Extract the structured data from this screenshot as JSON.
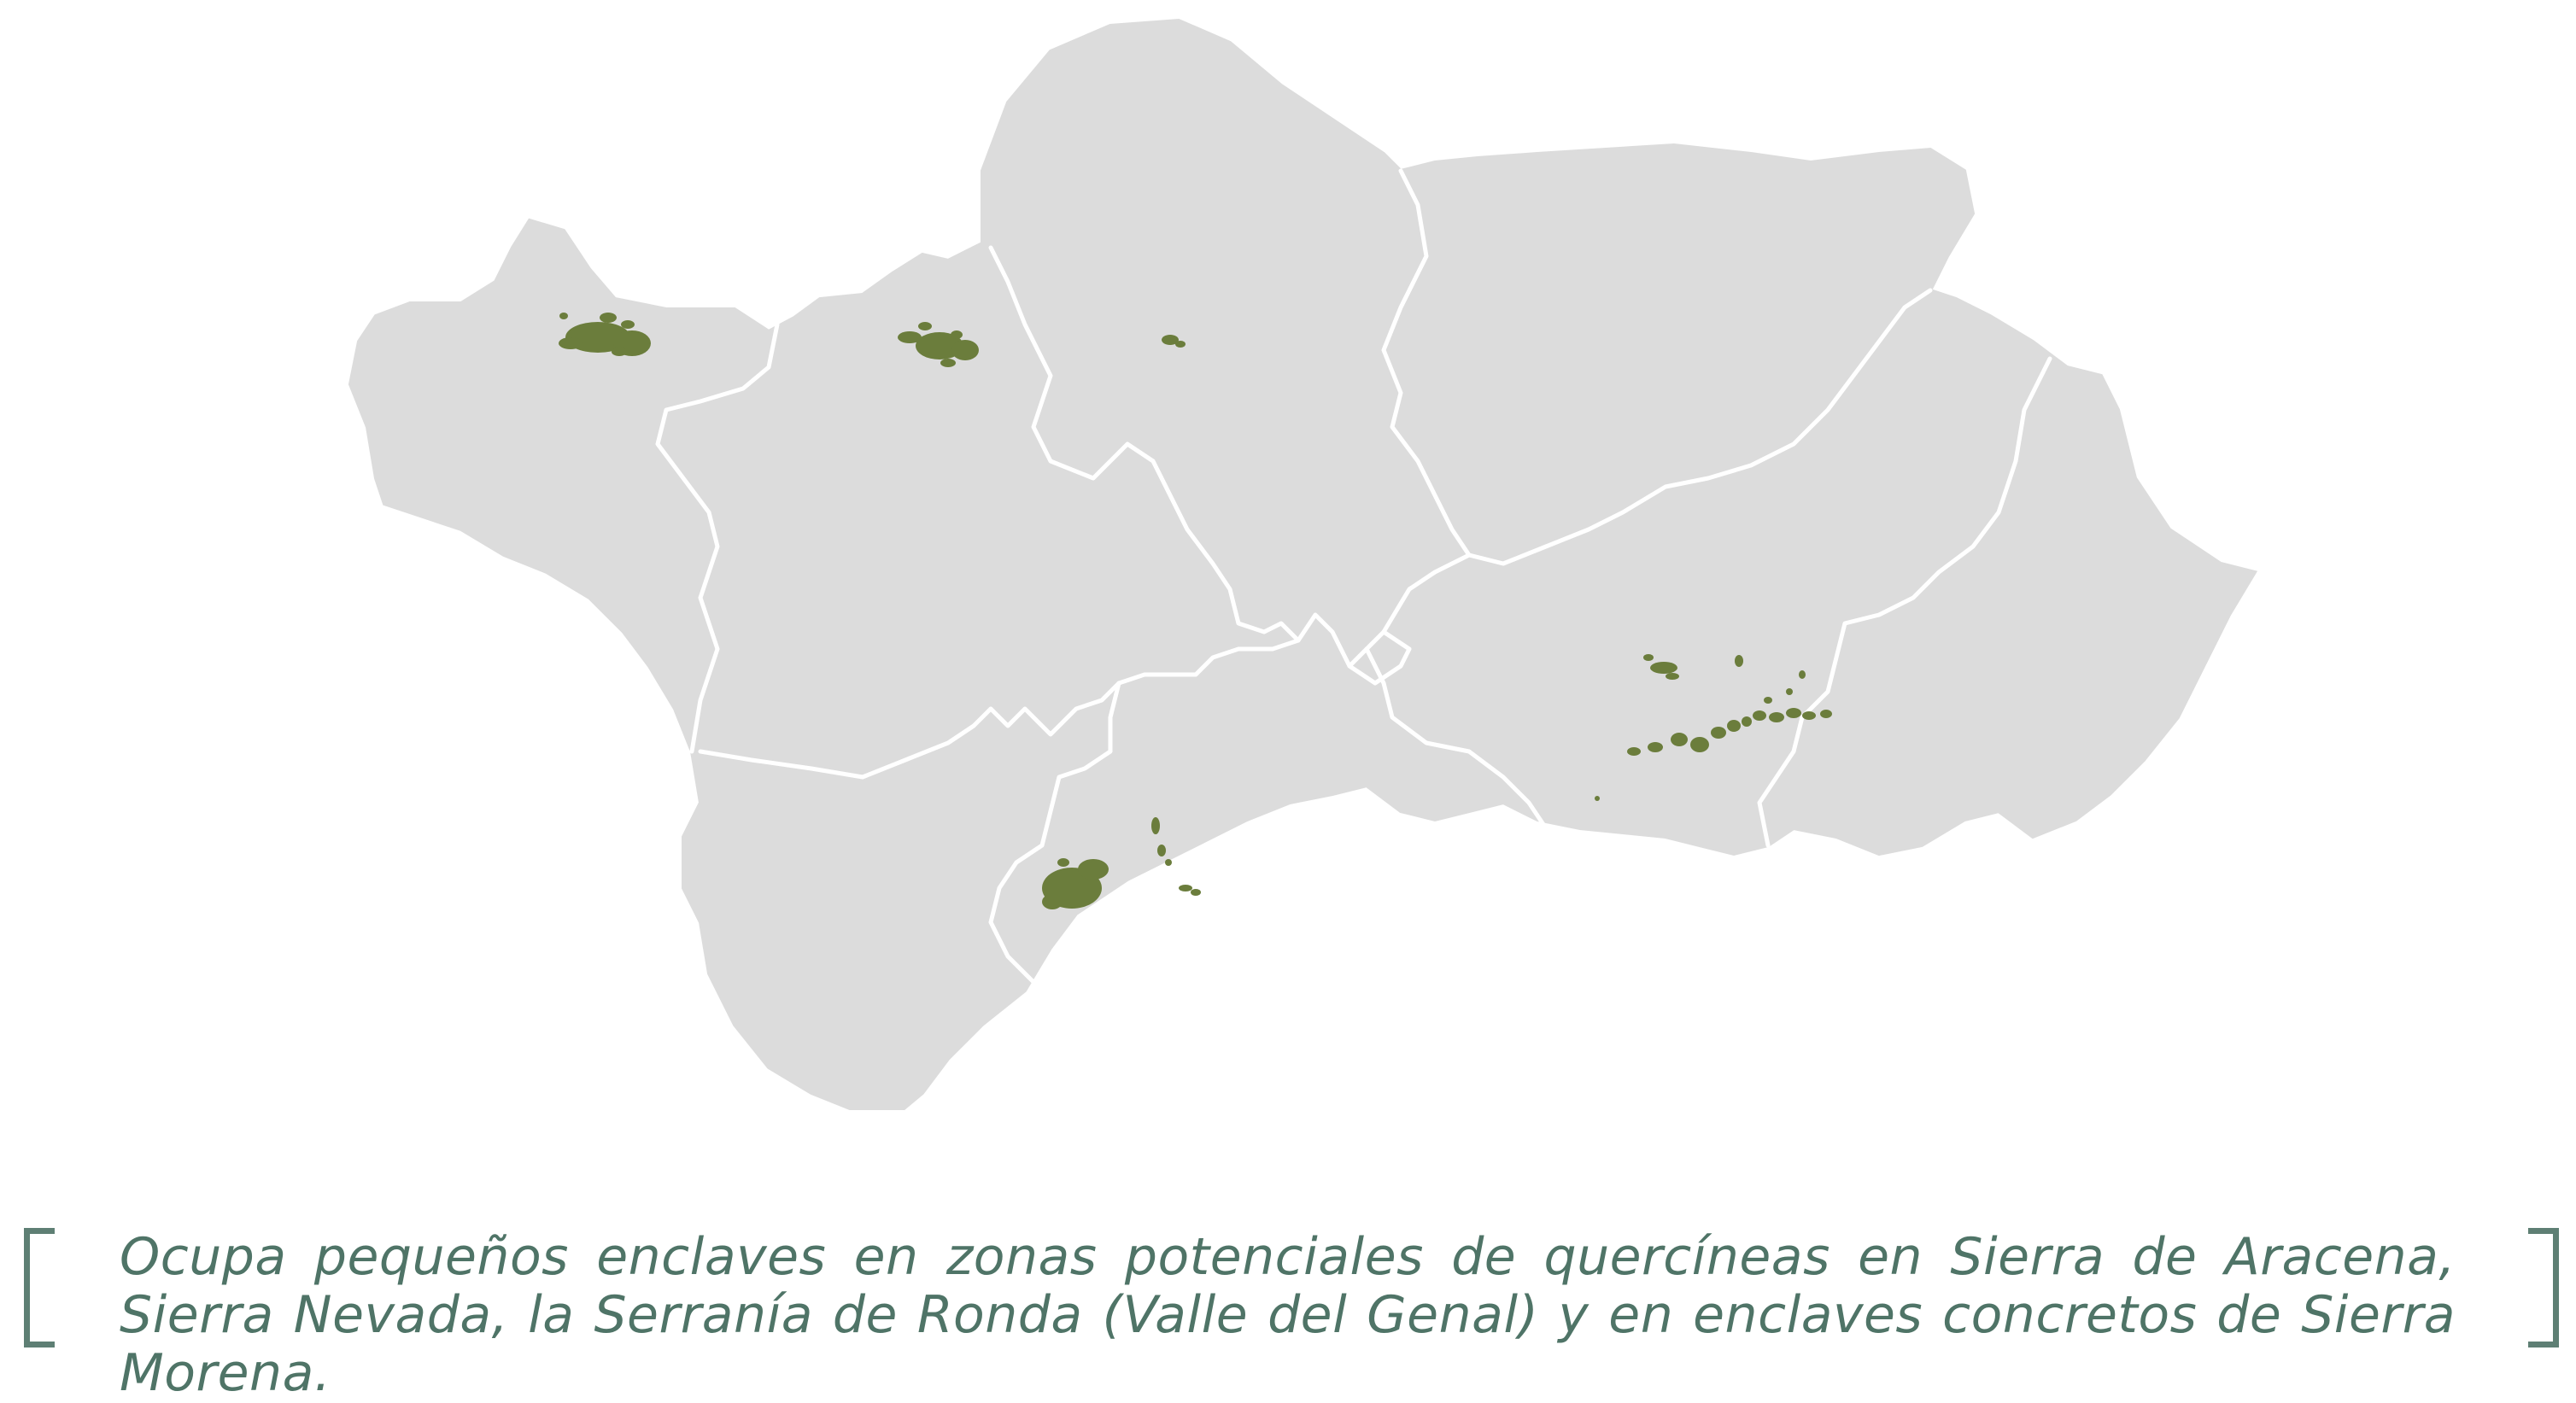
{
  "map": {
    "region_fill": "#dcdcdc",
    "border_color": "#ffffff",
    "presence_color": "#6b7d3c"
  },
  "caption": {
    "text": "Ocupa pequeños enclaves en zonas potenciales de quercíneas en Sierra de Aracena, Sierra Nevada, la Serranía de Ronda (Valle del Genal) y en enclaves concretos de Sierra Morena.",
    "accent_color": "#5e7f74"
  }
}
